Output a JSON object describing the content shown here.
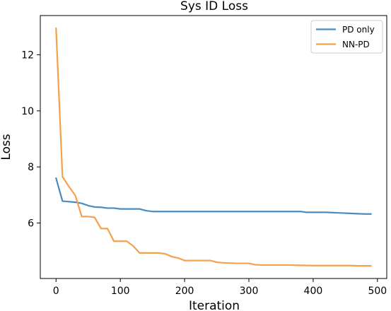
{
  "chart_data": {
    "type": "line",
    "title": "Sys ID Loss",
    "xlabel": "Iteration",
    "ylabel": "Loss",
    "xlim": [
      -24.5,
      514.5
    ],
    "ylim": [
      4.02,
      13.4
    ],
    "xticks": [
      0,
      100,
      200,
      300,
      400,
      500
    ],
    "yticks": [
      6,
      8,
      10,
      12
    ],
    "grid": false,
    "legend": "top-right",
    "series": [
      {
        "name": "PD only",
        "color": "#4a8bbf",
        "x": [
          0,
          10,
          20,
          30,
          40,
          50,
          60,
          70,
          80,
          90,
          100,
          110,
          120,
          130,
          140,
          150,
          160,
          170,
          180,
          190,
          200,
          220,
          240,
          260,
          280,
          300,
          320,
          340,
          360,
          380,
          390,
          400,
          420,
          440,
          460,
          470,
          480,
          490
        ],
        "y": [
          7.6,
          6.78,
          6.76,
          6.74,
          6.7,
          6.62,
          6.57,
          6.56,
          6.53,
          6.53,
          6.5,
          6.5,
          6.5,
          6.5,
          6.44,
          6.41,
          6.41,
          6.41,
          6.41,
          6.41,
          6.41,
          6.41,
          6.41,
          6.41,
          6.41,
          6.41,
          6.41,
          6.41,
          6.41,
          6.41,
          6.38,
          6.38,
          6.38,
          6.36,
          6.34,
          6.33,
          6.32,
          6.32
        ]
      },
      {
        "name": "NN-PD",
        "color": "#f5a04a",
        "x": [
          0,
          10,
          20,
          30,
          40,
          50,
          60,
          70,
          80,
          90,
          100,
          110,
          120,
          130,
          140,
          150,
          160,
          170,
          180,
          190,
          200,
          210,
          220,
          230,
          240,
          250,
          260,
          270,
          280,
          290,
          300,
          310,
          320,
          340,
          360,
          380,
          400,
          420,
          440,
          460,
          470,
          480,
          490
        ],
        "y": [
          12.95,
          7.65,
          7.3,
          6.98,
          6.23,
          6.23,
          6.2,
          5.8,
          5.8,
          5.35,
          5.35,
          5.35,
          5.18,
          4.93,
          4.93,
          4.93,
          4.93,
          4.9,
          4.8,
          4.75,
          4.66,
          4.66,
          4.66,
          4.66,
          4.66,
          4.6,
          4.58,
          4.57,
          4.56,
          4.56,
          4.56,
          4.51,
          4.5,
          4.5,
          4.5,
          4.49,
          4.48,
          4.48,
          4.48,
          4.48,
          4.47,
          4.47,
          4.47
        ]
      }
    ]
  }
}
